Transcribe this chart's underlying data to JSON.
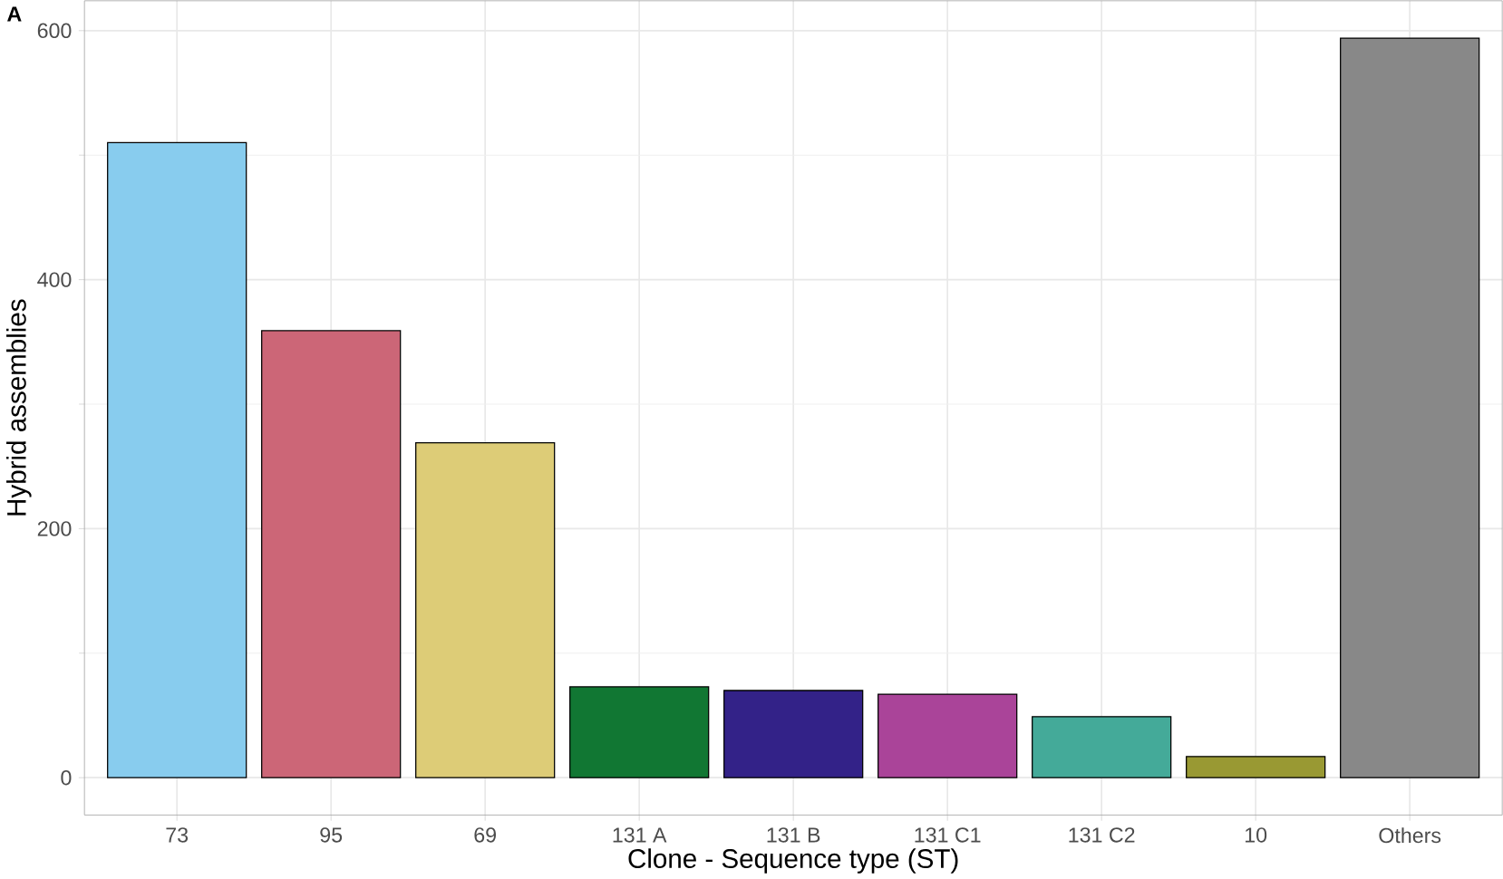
{
  "chart_data": {
    "type": "bar",
    "xlabel": "Clone - Sequence type (ST)",
    "ylabel": "Hybrid assemblies",
    "categories": [
      "73",
      "95",
      "69",
      "131 A",
      "131 B",
      "131 C1",
      "131 C2",
      "10",
      "Others"
    ],
    "values": [
      510,
      359,
      269,
      73,
      70,
      67,
      49,
      17,
      594
    ],
    "colors": [
      "#88ccee",
      "#cc6677",
      "#ddcc77",
      "#117733",
      "#332288",
      "#aa4499",
      "#44aa99",
      "#999933",
      "#888888"
    ],
    "ylim": [
      -30,
      624
    ],
    "yticks": [
      0,
      200,
      400,
      600
    ],
    "grid": true,
    "annotations": [
      "A"
    ]
  }
}
